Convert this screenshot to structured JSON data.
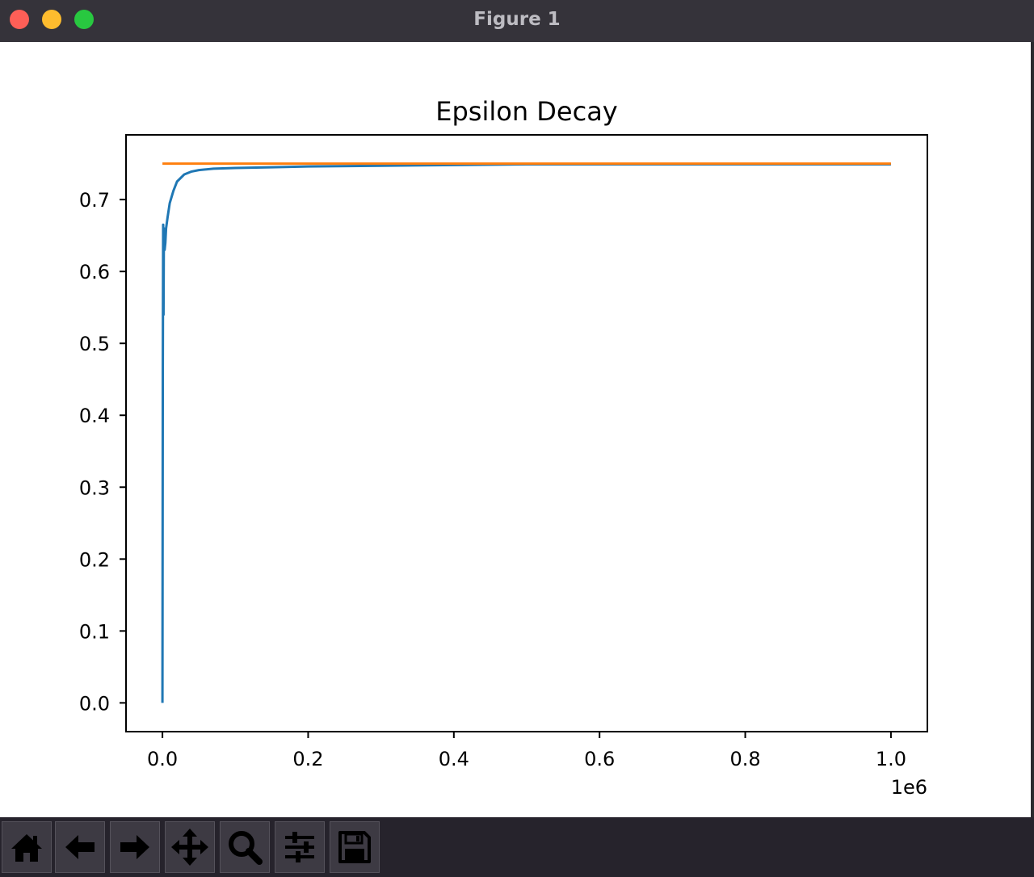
{
  "window": {
    "title": "Figure 1"
  },
  "toolbar": {
    "buttons": [
      {
        "icon": "home-icon",
        "name": "home-button"
      },
      {
        "icon": "back-arrow-icon",
        "name": "back-button"
      },
      {
        "icon": "forward-arrow-icon",
        "name": "forward-button"
      },
      {
        "icon": "pan-move-icon",
        "name": "pan-button"
      },
      {
        "icon": "zoom-magnifier-icon",
        "name": "zoom-button"
      },
      {
        "icon": "configure-subplots-icon",
        "name": "configure-subplots-button"
      },
      {
        "icon": "save-floppy-icon",
        "name": "save-button"
      }
    ]
  },
  "chart_data": {
    "type": "line",
    "title": "Epsilon Decay",
    "xlabel": "",
    "ylabel": "",
    "x_offset_label": "1e6",
    "xlim": [
      -0.05,
      1.05
    ],
    "ylim": [
      -0.04,
      0.79
    ],
    "xticks": [
      0.0,
      0.2,
      0.4,
      0.6,
      0.8,
      1.0
    ],
    "xtick_labels": [
      "0.0",
      "0.2",
      "0.4",
      "0.6",
      "0.8",
      "1.0"
    ],
    "yticks": [
      0.0,
      0.1,
      0.2,
      0.3,
      0.4,
      0.5,
      0.6,
      0.7
    ],
    "ytick_labels": [
      "0.0",
      "0.1",
      "0.2",
      "0.3",
      "0.4",
      "0.5",
      "0.6",
      "0.7"
    ],
    "grid": false,
    "series": [
      {
        "color": "#1f77b4",
        "x": [
          0.0,
          0.0005,
          0.001,
          0.0015,
          0.002,
          0.003,
          0.004,
          0.005,
          0.007,
          0.01,
          0.015,
          0.02,
          0.03,
          0.04,
          0.05,
          0.07,
          0.1,
          0.15,
          0.2,
          0.3,
          0.4,
          0.5,
          0.7,
          1.0
        ],
        "y": [
          0.0,
          0.46,
          0.665,
          0.54,
          0.66,
          0.63,
          0.64,
          0.66,
          0.675,
          0.695,
          0.712,
          0.725,
          0.735,
          0.739,
          0.741,
          0.743,
          0.744,
          0.745,
          0.746,
          0.747,
          0.748,
          0.749,
          0.749,
          0.749
        ]
      },
      {
        "color": "#ff7f0e",
        "x": [
          0.0,
          1.0
        ],
        "y": [
          0.75,
          0.75
        ]
      }
    ]
  }
}
